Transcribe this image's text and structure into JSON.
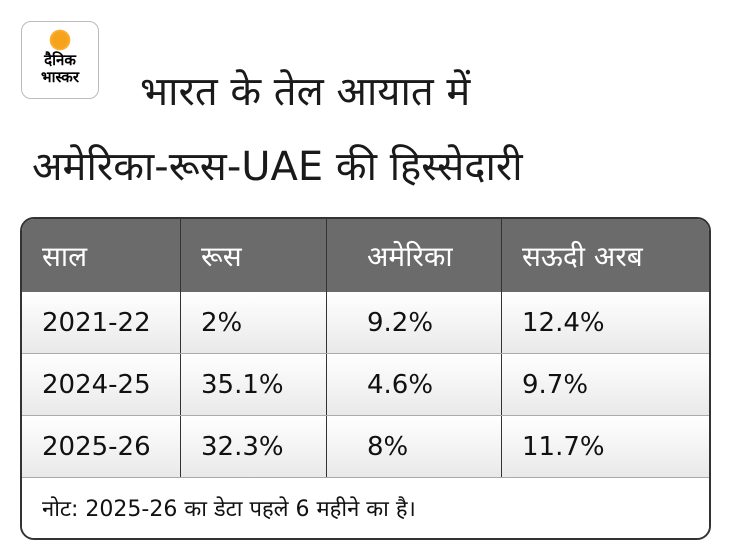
{
  "logo": {
    "line1": "दैनिक",
    "line2": "भास्कर"
  },
  "title": {
    "line1": "भारत के तेल आयात में",
    "line2": "अमेरिका-रूस-UAE की हिस्सेदारी"
  },
  "table": {
    "headers": [
      "साल",
      "रूस",
      "अमेरिका",
      "सऊदी अरब"
    ],
    "rows": [
      [
        "2021-22",
        "2%",
        "9.2%",
        "12.4%"
      ],
      [
        "2024-25",
        "35.1%",
        "4.6%",
        "9.7%"
      ],
      [
        "2025-26",
        "32.3%",
        "8%",
        "11.7%"
      ]
    ],
    "note": "नोट: 2025-26 का डेटा पहले 6 महीने का है।"
  },
  "colors": {
    "header_bg": "#6b6b6b",
    "sun": "#f7a21b"
  }
}
